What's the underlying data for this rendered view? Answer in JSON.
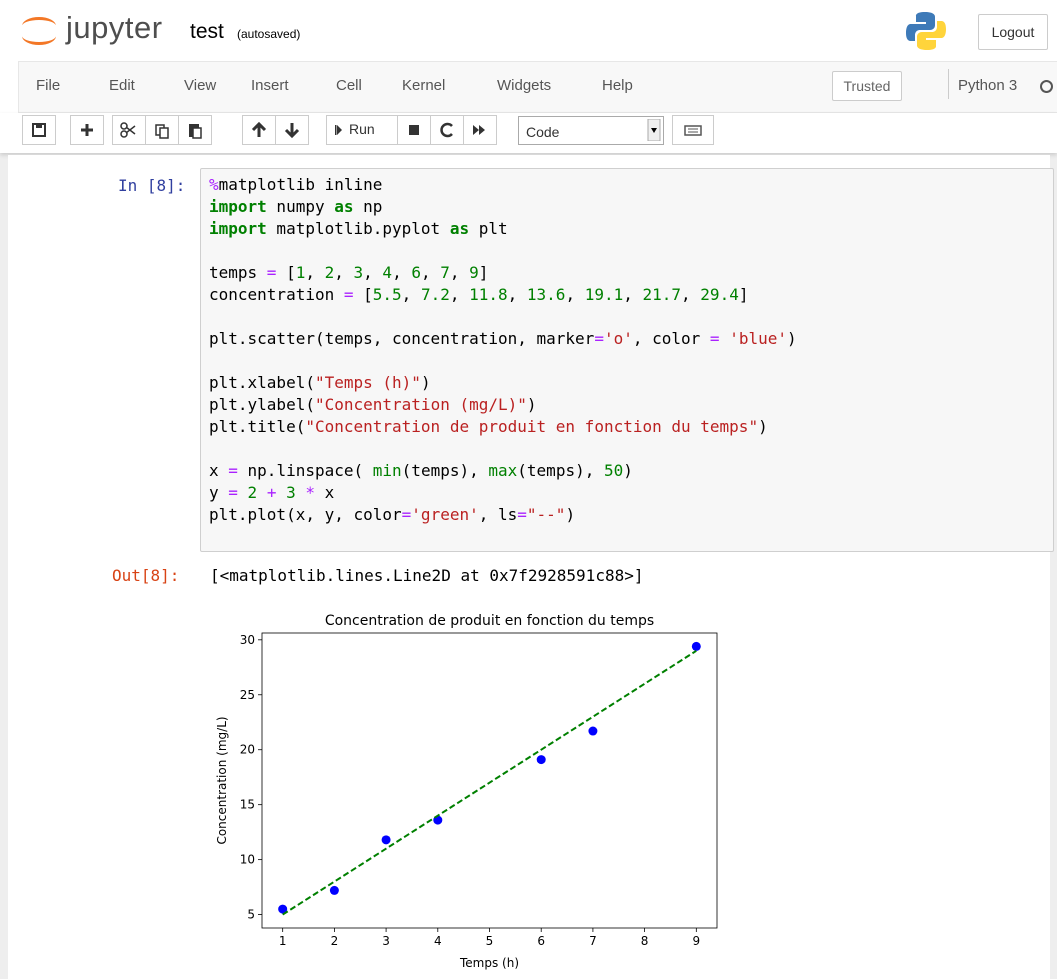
{
  "header": {
    "brand": "jupyter",
    "notebook_name": "test",
    "save_status": "(autosaved)",
    "logout": "Logout"
  },
  "menu": {
    "items": [
      "File",
      "Edit",
      "View",
      "Insert",
      "Cell",
      "Kernel",
      "Widgets",
      "Help"
    ],
    "trusted": "Trusted",
    "kernel": "Python 3"
  },
  "toolbar": {
    "run": "Run",
    "cell_type": "Code"
  },
  "cell": {
    "in_prompt": "In [8]:",
    "code": [
      [
        {
          "text": "%",
          "style": "op"
        },
        {
          "text": "matplotlib inline"
        }
      ],
      [
        {
          "text": "import",
          "style": "kw"
        },
        {
          "text": " numpy "
        },
        {
          "text": "as",
          "style": "kw"
        },
        {
          "text": " np"
        }
      ],
      [
        {
          "text": "import",
          "style": "kw"
        },
        {
          "text": " matplotlib.pyplot "
        },
        {
          "text": "as",
          "style": "kw"
        },
        {
          "text": " plt"
        }
      ],
      [],
      [
        {
          "text": "temps "
        },
        {
          "text": "=",
          "style": "op"
        },
        {
          "text": " ["
        },
        {
          "text": "1",
          "style": "num"
        },
        {
          "text": ", "
        },
        {
          "text": "2",
          "style": "num"
        },
        {
          "text": ", "
        },
        {
          "text": "3",
          "style": "num"
        },
        {
          "text": ", "
        },
        {
          "text": "4",
          "style": "num"
        },
        {
          "text": ", "
        },
        {
          "text": "6",
          "style": "num"
        },
        {
          "text": ", "
        },
        {
          "text": "7",
          "style": "num"
        },
        {
          "text": ", "
        },
        {
          "text": "9",
          "style": "num"
        },
        {
          "text": "]"
        }
      ],
      [
        {
          "text": "concentration "
        },
        {
          "text": "=",
          "style": "op"
        },
        {
          "text": " ["
        },
        {
          "text": "5.5",
          "style": "num"
        },
        {
          "text": ", "
        },
        {
          "text": "7.2",
          "style": "num"
        },
        {
          "text": ", "
        },
        {
          "text": "11.8",
          "style": "num"
        },
        {
          "text": ", "
        },
        {
          "text": "13.6",
          "style": "num"
        },
        {
          "text": ", "
        },
        {
          "text": "19.1",
          "style": "num"
        },
        {
          "text": ", "
        },
        {
          "text": "21.7",
          "style": "num"
        },
        {
          "text": ", "
        },
        {
          "text": "29.4",
          "style": "num"
        },
        {
          "text": "]"
        }
      ],
      [],
      [
        {
          "text": "plt.scatter(temps, concentration, marker"
        },
        {
          "text": "=",
          "style": "op"
        },
        {
          "text": "'o'",
          "style": "str"
        },
        {
          "text": ", color "
        },
        {
          "text": "=",
          "style": "op"
        },
        {
          "text": " "
        },
        {
          "text": "'blue'",
          "style": "str"
        },
        {
          "text": ")"
        }
      ],
      [],
      [
        {
          "text": "plt.xlabel("
        },
        {
          "text": "\"Temps (h)\"",
          "style": "str"
        },
        {
          "text": ")"
        }
      ],
      [
        {
          "text": "plt.ylabel("
        },
        {
          "text": "\"Concentration (mg/L)\"",
          "style": "str"
        },
        {
          "text": ")"
        }
      ],
      [
        {
          "text": "plt.title("
        },
        {
          "text": "\"Concentration de produit en fonction du temps\"",
          "style": "str"
        },
        {
          "text": ")"
        }
      ],
      [],
      [
        {
          "text": "x "
        },
        {
          "text": "=",
          "style": "op"
        },
        {
          "text": " np.linspace( "
        },
        {
          "text": "min",
          "style": "builtin"
        },
        {
          "text": "(temps), "
        },
        {
          "text": "max",
          "style": "builtin"
        },
        {
          "text": "(temps), "
        },
        {
          "text": "50",
          "style": "num"
        },
        {
          "text": ")"
        }
      ],
      [
        {
          "text": "y "
        },
        {
          "text": "=",
          "style": "op"
        },
        {
          "text": " "
        },
        {
          "text": "2",
          "style": "num"
        },
        {
          "text": " "
        },
        {
          "text": "+",
          "style": "op"
        },
        {
          "text": " "
        },
        {
          "text": "3",
          "style": "num"
        },
        {
          "text": " "
        },
        {
          "text": "*",
          "style": "op"
        },
        {
          "text": " x"
        }
      ],
      [
        {
          "text": "plt.plot(x, y, color"
        },
        {
          "text": "=",
          "style": "op"
        },
        {
          "text": "'green'",
          "style": "str"
        },
        {
          "text": ", ls"
        },
        {
          "text": "=",
          "style": "op"
        },
        {
          "text": "\"--\"",
          "style": "str"
        },
        {
          "text": ")"
        }
      ]
    ],
    "out_prompt": "Out[8]:",
    "output_text": "[<matplotlib.lines.Line2D at 0x7f2928591c88>]"
  },
  "chart_data": {
    "type": "scatter",
    "title": "Concentration de produit en fonction du temps",
    "xlabel": "Temps (h)",
    "ylabel": "Concentration (mg/L)",
    "series": [
      {
        "type": "scatter",
        "color": "blue",
        "marker": "o",
        "x": [
          1,
          2,
          3,
          4,
          6,
          7,
          9
        ],
        "values": [
          5.5,
          7.2,
          11.8,
          13.6,
          19.1,
          21.7,
          29.4
        ]
      },
      {
        "type": "line",
        "color": "green",
        "linestyle": "--",
        "x": [
          1,
          9
        ],
        "values": [
          5,
          29
        ]
      }
    ],
    "xlim": [
      0.6,
      9.4
    ],
    "xticks": [
      1,
      2,
      3,
      4,
      5,
      6,
      7,
      8,
      9
    ],
    "ylim": [
      3.78,
      30.62
    ],
    "yticks": [
      5,
      10,
      15,
      20,
      25,
      30
    ],
    "grid": false
  }
}
